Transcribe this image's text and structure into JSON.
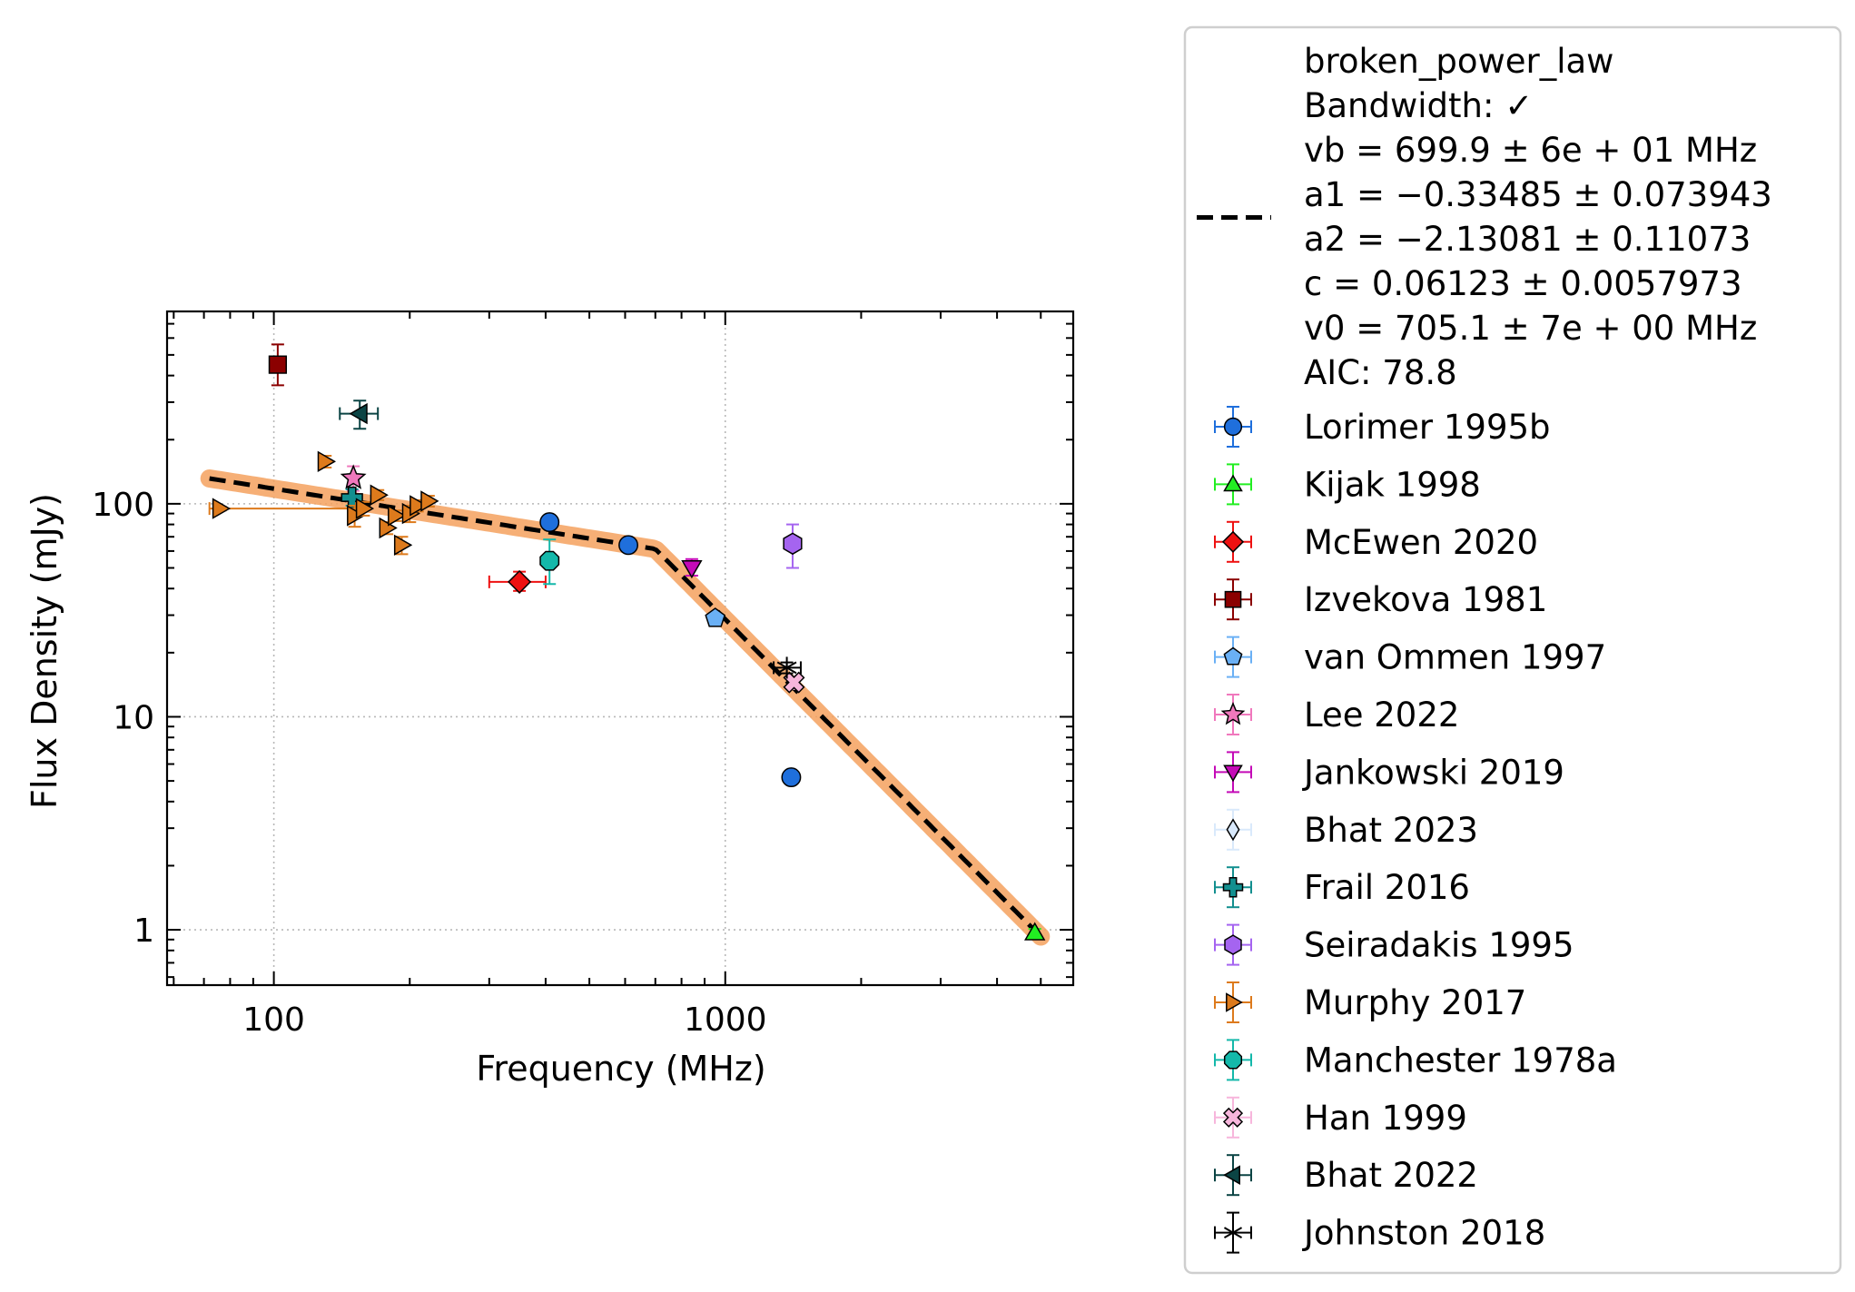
{
  "chart_data": {
    "type": "scatter",
    "title": "",
    "xlabel": "Frequency (MHz)",
    "ylabel": "Flux Density (mJy)",
    "xscale": "log",
    "yscale": "log",
    "xlim": [
      58,
      5900
    ],
    "ylim": [
      0.55,
      800
    ],
    "grid": true,
    "legend_position": "outside-right",
    "x_ticks": [
      {
        "value": 100,
        "label": "100"
      },
      {
        "value": 1000,
        "label": "1000"
      }
    ],
    "y_ticks": [
      {
        "value": 1,
        "label": "1"
      },
      {
        "value": 10,
        "label": "10"
      },
      {
        "value": 100,
        "label": "100"
      }
    ],
    "fit": {
      "model_label": "broken_power_law",
      "info_lines": [
        "Bandwidth: ✓",
        "vb = 699.9 ± 6e + 01 MHz",
        "a1 = −0.33485 ± 0.073943",
        "a2 = −2.13081 ± 0.11073",
        "c = 0.06123 ± 0.0057973",
        "v0 = 705.1 ± 7e + 00 MHz",
        "AIC: 78.8"
      ],
      "vb": 699.9,
      "a1": -0.33485,
      "a2": -2.13081,
      "c": 0.06123,
      "v0": 705.1,
      "x_range": [
        72,
        5000
      ],
      "line_color": "#000000",
      "band_color": "#f5a15e"
    },
    "series": [
      {
        "name": "Lorimer 1995b",
        "marker": "circle",
        "color": "#1f6fdc",
        "edge": "#000000",
        "points": [
          {
            "x": 408,
            "y": 82,
            "ylo": 78,
            "yhi": 86
          },
          {
            "x": 610,
            "y": 64,
            "ylo": 61,
            "yhi": 67
          },
          {
            "x": 1400,
            "y": 5.2,
            "ylo": 5.0,
            "yhi": 5.4
          }
        ]
      },
      {
        "name": "Kijak 1998",
        "marker": "triangle-up",
        "color": "#22ee22",
        "edge": "#000000",
        "points": [
          {
            "x": 4850,
            "y": 0.97,
            "ylo": 0.93,
            "yhi": 1.01
          }
        ]
      },
      {
        "name": "McEwen 2020",
        "marker": "diamond",
        "color": "#ee1111",
        "edge": "#000000",
        "points": [
          {
            "x": 350,
            "y": 43,
            "ylo": 39,
            "yhi": 48,
            "xlo": 300,
            "xhi": 400
          }
        ]
      },
      {
        "name": "Izvekova 1981",
        "marker": "square",
        "color": "#8b0000",
        "edge": "#000000",
        "points": [
          {
            "x": 102,
            "y": 450,
            "ylo": 360,
            "yhi": 560
          }
        ]
      },
      {
        "name": "van Ommen 1997",
        "marker": "pentagon",
        "color": "#6ab0f5",
        "edge": "#000000",
        "points": [
          {
            "x": 950,
            "y": 29,
            "ylo": 28,
            "yhi": 30
          }
        ]
      },
      {
        "name": "Lee 2022",
        "marker": "star",
        "color": "#f078bd",
        "edge": "#000000",
        "points": [
          {
            "x": 150,
            "y": 132,
            "ylo": 115,
            "yhi": 150
          }
        ]
      },
      {
        "name": "Jankowski 2019",
        "marker": "triangle-down",
        "color": "#c40ab7",
        "edge": "#000000",
        "points": [
          {
            "x": 843,
            "y": 50,
            "ylo": 46,
            "yhi": 55
          }
        ]
      },
      {
        "name": "Bhat 2023",
        "marker": "thin-diamond",
        "color": "#d9e9fb",
        "edge": "#000000",
        "points": []
      },
      {
        "name": "Frail 2016",
        "marker": "plus",
        "color": "#138f8f",
        "edge": "#000000",
        "points": [
          {
            "x": 149,
            "y": 107,
            "ylo": 98,
            "yhi": 117
          }
        ]
      },
      {
        "name": "Seiradakis 1995",
        "marker": "hexagon",
        "color": "#a564f0",
        "edge": "#000000",
        "points": [
          {
            "x": 1410,
            "y": 65,
            "ylo": 50,
            "yhi": 80
          }
        ]
      },
      {
        "name": "Murphy 2017",
        "marker": "triangle-right",
        "color": "#dd7a1c",
        "edge": "#000000",
        "points": [
          {
            "x": 76,
            "y": 95,
            "xlo": 72,
            "xhi": 152,
            "ylo": 93,
            "yhi": 97
          },
          {
            "x": 130,
            "y": 158,
            "ylo": 148,
            "yhi": 168
          },
          {
            "x": 151,
            "y": 88,
            "ylo": 78,
            "yhi": 98
          },
          {
            "x": 158,
            "y": 95,
            "ylo": 88,
            "yhi": 102
          },
          {
            "x": 170,
            "y": 110,
            "ylo": 104,
            "yhi": 116
          },
          {
            "x": 178,
            "y": 77,
            "ylo": 72,
            "yhi": 82
          },
          {
            "x": 186,
            "y": 88,
            "ylo": 83,
            "yhi": 93
          },
          {
            "x": 192,
            "y": 64,
            "ylo": 58,
            "yhi": 70
          },
          {
            "x": 200,
            "y": 90,
            "ylo": 82,
            "yhi": 98
          },
          {
            "x": 208,
            "y": 98,
            "ylo": 92,
            "yhi": 104
          },
          {
            "x": 220,
            "y": 103,
            "ylo": 97,
            "yhi": 109
          }
        ]
      },
      {
        "name": "Manchester 1978a",
        "marker": "octagon",
        "color": "#14b8aa",
        "edge": "#000000",
        "points": [
          {
            "x": 408,
            "y": 54,
            "ylo": 42,
            "yhi": 68
          }
        ]
      },
      {
        "name": "Han 1999",
        "marker": "x-filled",
        "color": "#f7b6dc",
        "edge": "#000000",
        "points": [
          {
            "x": 1420,
            "y": 14.5,
            "ylo": 13.5,
            "yhi": 15.5
          }
        ]
      },
      {
        "name": "Bhat 2022",
        "marker": "triangle-left",
        "color": "#0b4444",
        "edge": "#000000",
        "points": [
          {
            "x": 155,
            "y": 265,
            "xlo": 140,
            "xhi": 170,
            "ylo": 225,
            "yhi": 305
          }
        ]
      },
      {
        "name": "Johnston 2018",
        "marker": "asterisk",
        "color": "#000000",
        "edge": "#000000",
        "points": [
          {
            "x": 1369,
            "y": 17,
            "xlo": 1280,
            "xhi": 1470,
            "ylo": 16,
            "yhi": 18
          }
        ]
      }
    ]
  }
}
